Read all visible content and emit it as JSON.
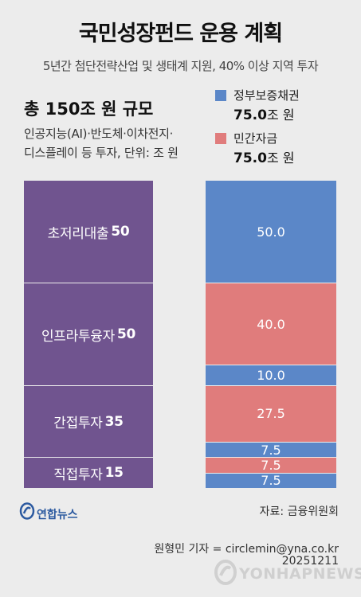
{
  "title": "국민성장펀드 운용 계획",
  "subtitle": "5년간 첨단전략산업 및 생태계 지원, 40% 이상 지역 투자",
  "total_title": "총 150조 원 규모",
  "desc_line1": "인공지능(AI)·반도체·이차전지·",
  "desc_line2": "디스플레이 등 투자, 단위: 조 원",
  "legend": [
    {
      "name": "정부보증채권",
      "value": "75.0",
      "unit": "조 원",
      "color": "#5b87c8"
    },
    {
      "name": "민간자금",
      "value": "75.0",
      "unit": "조 원",
      "color": "#e07c7c"
    }
  ],
  "chart_data": {
    "type": "bar",
    "unit": "조 원",
    "total": 150,
    "categories": [
      {
        "label": "초저리대출",
        "value": 50,
        "govt": 50.0,
        "private": 0
      },
      {
        "label": "인프라투융자",
        "value": 50,
        "govt": 10.0,
        "private": 40.0
      },
      {
        "label": "간접투자",
        "value": 35,
        "govt": 7.5,
        "private": 27.5
      },
      {
        "label": "직접투자",
        "value": 15,
        "govt": 7.5,
        "private": 7.5
      }
    ],
    "segments": [
      {
        "series": "정부보증채권",
        "value": 50.0,
        "label": "50.0"
      },
      {
        "series": "민간자금",
        "value": 40.0,
        "label": "40.0"
      },
      {
        "series": "정부보증채권",
        "value": 10.0,
        "label": "10.0"
      },
      {
        "series": "민간자금",
        "value": 27.5,
        "label": "27.5"
      },
      {
        "series": "정부보증채권",
        "value": 7.5,
        "label": "7.5"
      },
      {
        "series": "민간자금",
        "value": 7.5,
        "label": "7.5"
      },
      {
        "series": "정부보증채권",
        "value": 7.5,
        "label": "7.5"
      }
    ],
    "colors": {
      "category": "#70548f",
      "govt": "#5b87c8",
      "private": "#e07c7c"
    }
  },
  "source": "자료: 금융위원회",
  "logo": "연합뉴스",
  "credit": "원형민 기자 = circlemin@yna.co.kr",
  "date": "20251211",
  "watermark": "YONHAPNEWS"
}
